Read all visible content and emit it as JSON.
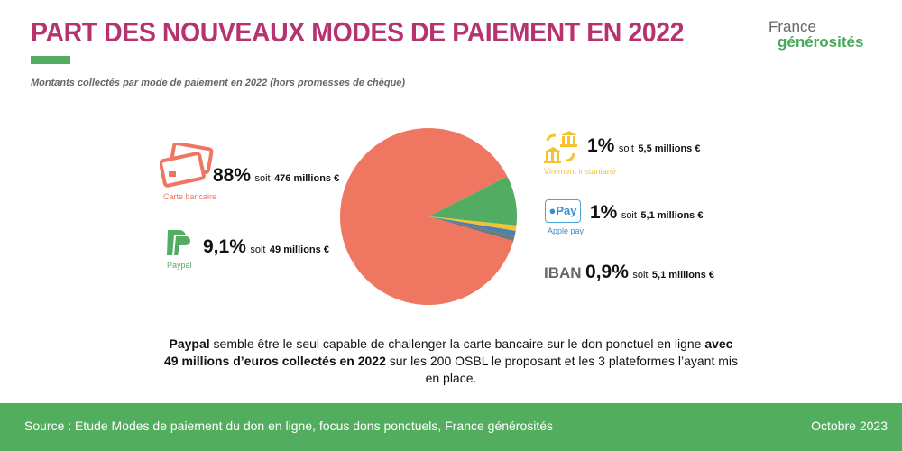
{
  "title": "PART DES NOUVEAUX MODES DE PAIEMENT EN 2022",
  "subtitle": "Montants collectés par mode de paiement en 2022 (hors promesses de chèque)",
  "logo": {
    "line1": "France",
    "line2": "générosités"
  },
  "chart_data": {
    "type": "pie",
    "title": "",
    "slices": [
      {
        "name": "Carte bancaire",
        "percent_label": "88%",
        "amount": "476 millions €",
        "value": 88,
        "color": "#ef7762"
      },
      {
        "name": "Paypal",
        "percent_label": "9,1%",
        "amount": "49 millions €",
        "value": 9.1,
        "color": "#52ad63"
      },
      {
        "name": "Virement instantané",
        "percent_label": "1%",
        "amount": "5,5 millions €",
        "value": 1,
        "color": "#f4c430"
      },
      {
        "name": "Apple pay",
        "percent_label": "1%",
        "amount": "5,1 millions €",
        "value": 1,
        "color": "#4a7fae"
      },
      {
        "name": "IBAN",
        "percent_label": "0,9%",
        "amount": "5,1 millions €",
        "value": 0.9,
        "color": "#777777"
      }
    ]
  },
  "soit": "soit",
  "apple_icon_text": "Pay",
  "note": {
    "p1": "Paypal",
    "p2": " semble être le seul capable de challenger la carte bancaire sur le don ponctuel en ligne ",
    "p3": "avec 49 millions d’euros collectés en 2022",
    "p4": " sur les 200 OSBL le proposant et les 3 plateformes l’ayant mis en place."
  },
  "footer": {
    "source": "Source : Etude Modes de paiement du don en ligne, focus dons ponctuels, France générosités",
    "date": "Octobre 2023"
  }
}
